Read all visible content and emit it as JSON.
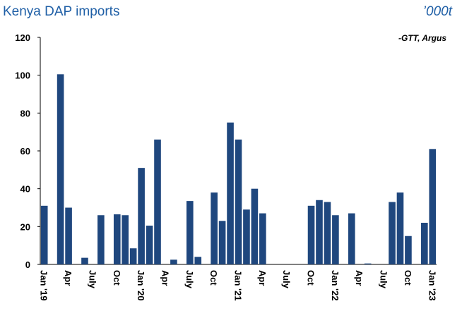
{
  "chart_data": {
    "type": "bar",
    "title": "Kenya DAP imports",
    "unit_label": "’000t",
    "source": "-GTT, Argus",
    "categories": [
      "Jan '19",
      null,
      null,
      "Apr",
      null,
      null,
      "July",
      null,
      null,
      "Oct",
      null,
      null,
      "Jan '20",
      null,
      null,
      "Apr",
      null,
      null,
      "July",
      null,
      null,
      "Oct",
      null,
      null,
      "Jan '21",
      null,
      null,
      "Apr",
      null,
      null,
      "July",
      null,
      null,
      "Oct",
      null,
      null,
      "Jan '22",
      null,
      null,
      "Apr",
      null,
      null,
      "July",
      null,
      null,
      "Oct",
      null,
      null,
      "Jan '23"
    ],
    "values": [
      31,
      0,
      100.5,
      30,
      0,
      3.5,
      0,
      26,
      0,
      26.5,
      26,
      8.5,
      51,
      20.5,
      66,
      0,
      2.5,
      0,
      33.5,
      4,
      0,
      38,
      23,
      75,
      66,
      29,
      40,
      27,
      0,
      0,
      0,
      0,
      0,
      31,
      34,
      33,
      26,
      0,
      27,
      0,
      0.5,
      0,
      0,
      33,
      38,
      15,
      0,
      22,
      61
    ],
    "color": "#1f477e",
    "ylim": [
      0,
      120
    ],
    "yticks": [
      0,
      20,
      40,
      60,
      80,
      100,
      120
    ],
    "grid": false
  }
}
